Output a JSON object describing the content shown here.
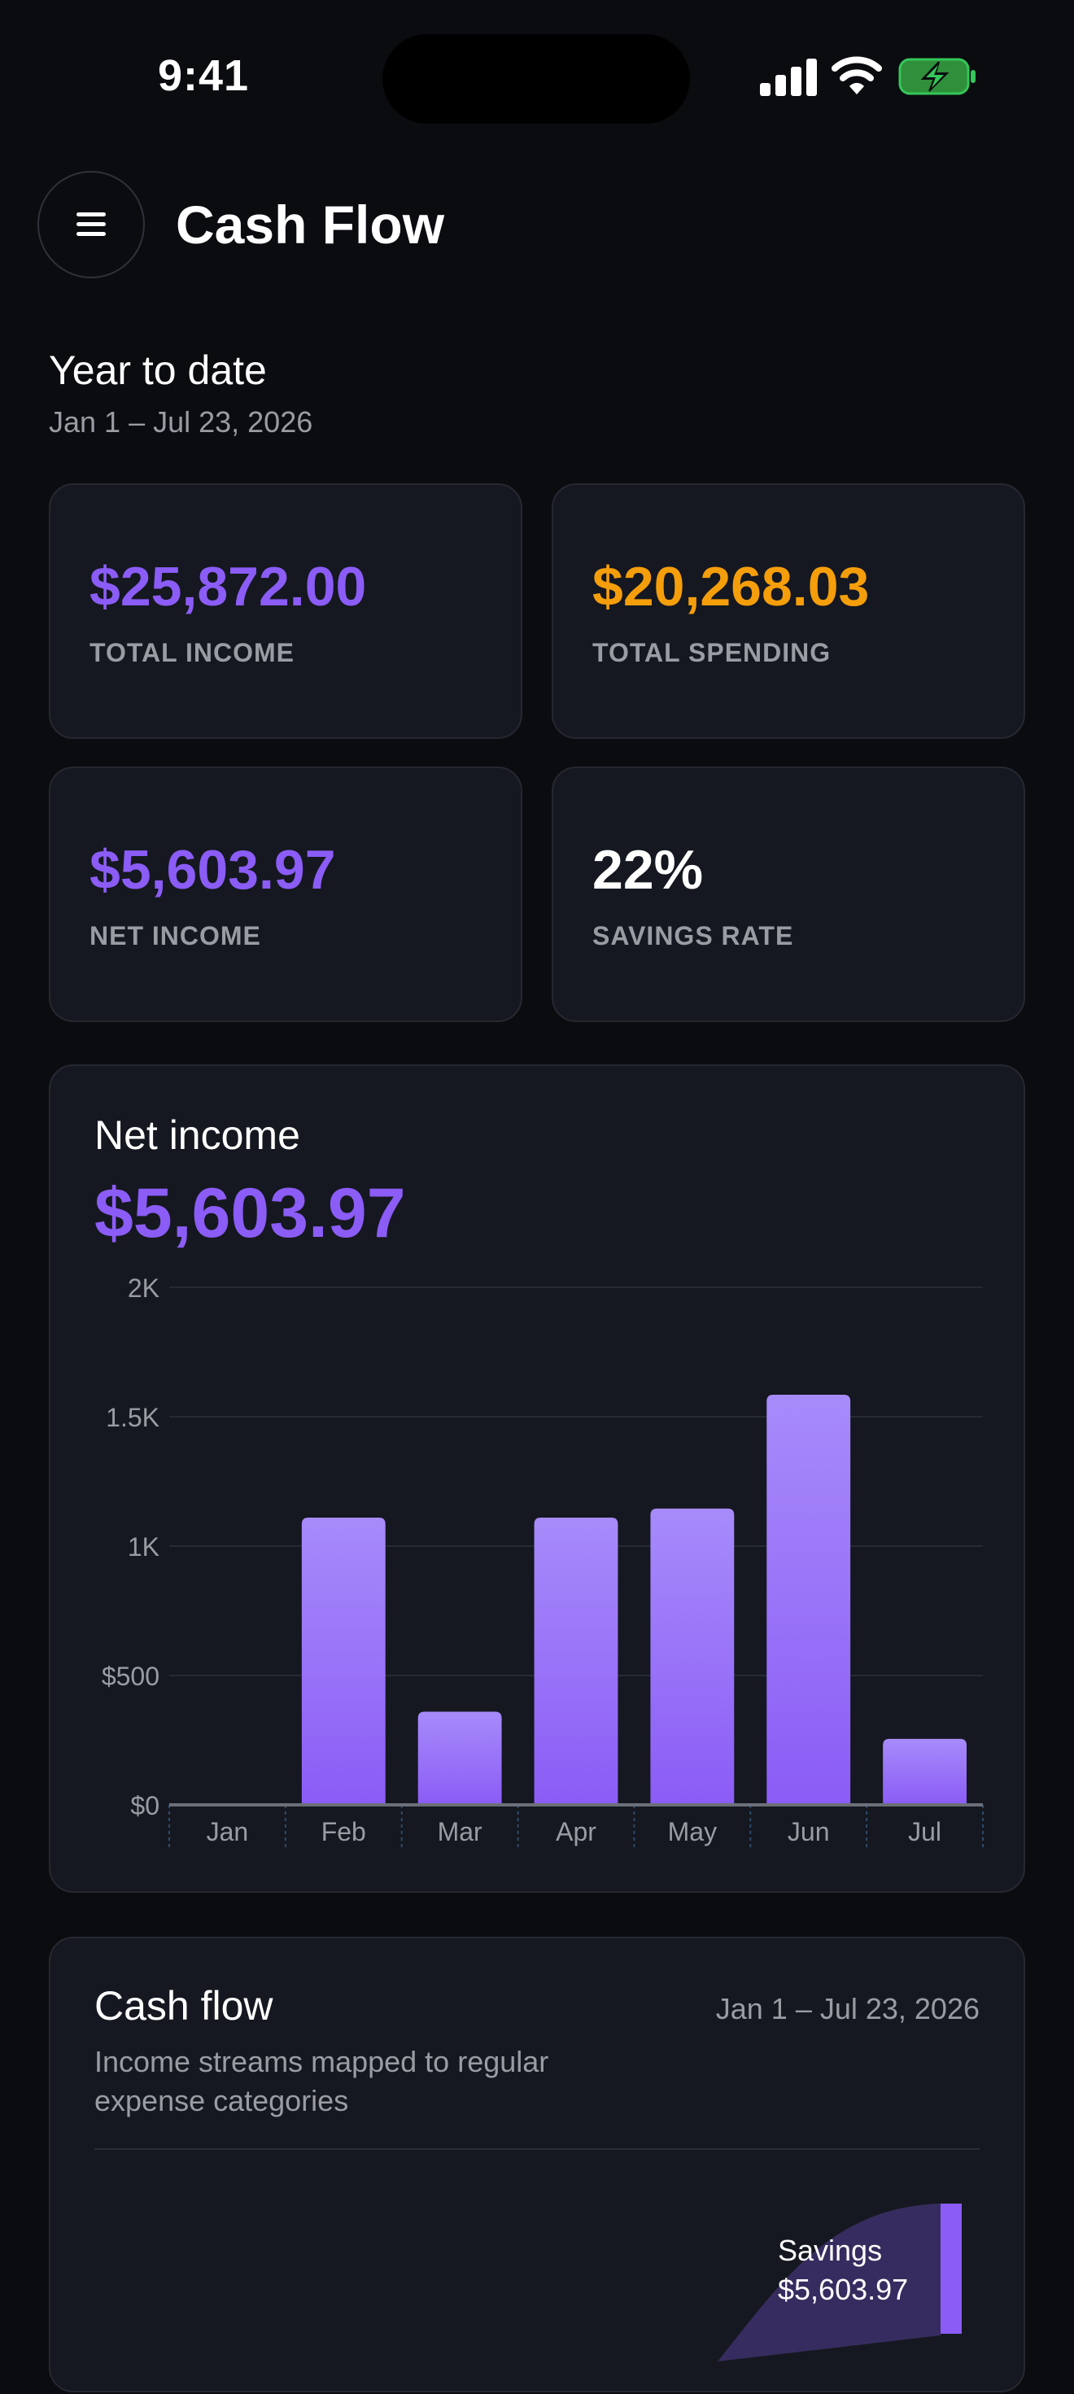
{
  "status_bar": {
    "time": "9:41"
  },
  "header": {
    "title": "Cash Flow",
    "menu_icon": "hamburger-menu-icon"
  },
  "summary": {
    "title": "Year to date",
    "date_range": "Jan 1 – Jul 23, 2026"
  },
  "stats": [
    {
      "value": "$25,872.00",
      "label": "TOTAL INCOME",
      "color": "#8b5cf6"
    },
    {
      "value": "$20,268.03",
      "label": "TOTAL SPENDING",
      "color": "#f59e0b"
    },
    {
      "value": "$5,603.97",
      "label": "NET INCOME",
      "color": "#8b5cf6"
    },
    {
      "value": "22%",
      "label": "SAVINGS RATE",
      "color": "#ffffff"
    }
  ],
  "net_income_chart": {
    "title": "Net income",
    "value": "$5,603.97",
    "chart_data": {
      "type": "bar",
      "categories": [
        "Jan",
        "Feb",
        "Mar",
        "Apr",
        "May",
        "Jun",
        "Jul"
      ],
      "values": [
        0,
        1110,
        360,
        1110,
        1145,
        1585,
        255
      ],
      "ylim": [
        0,
        2000
      ],
      "y_ticks": [
        {
          "value": 0,
          "label": "$0"
        },
        {
          "value": 500,
          "label": "$500"
        },
        {
          "value": 1000,
          "label": "1K"
        },
        {
          "value": 1500,
          "label": "1.5K"
        },
        {
          "value": 2000,
          "label": "2K"
        }
      ],
      "grid": true,
      "bar_color": "#8b5cf6",
      "bar_color_top": "#a78bfa"
    }
  },
  "cash_flow": {
    "title": "Cash flow",
    "date_range": "Jan 1 – Jul 23, 2026",
    "subtitle": "Income streams mapped to regular expense categories",
    "node_name": "Savings",
    "node_value": "$5,603.97"
  }
}
